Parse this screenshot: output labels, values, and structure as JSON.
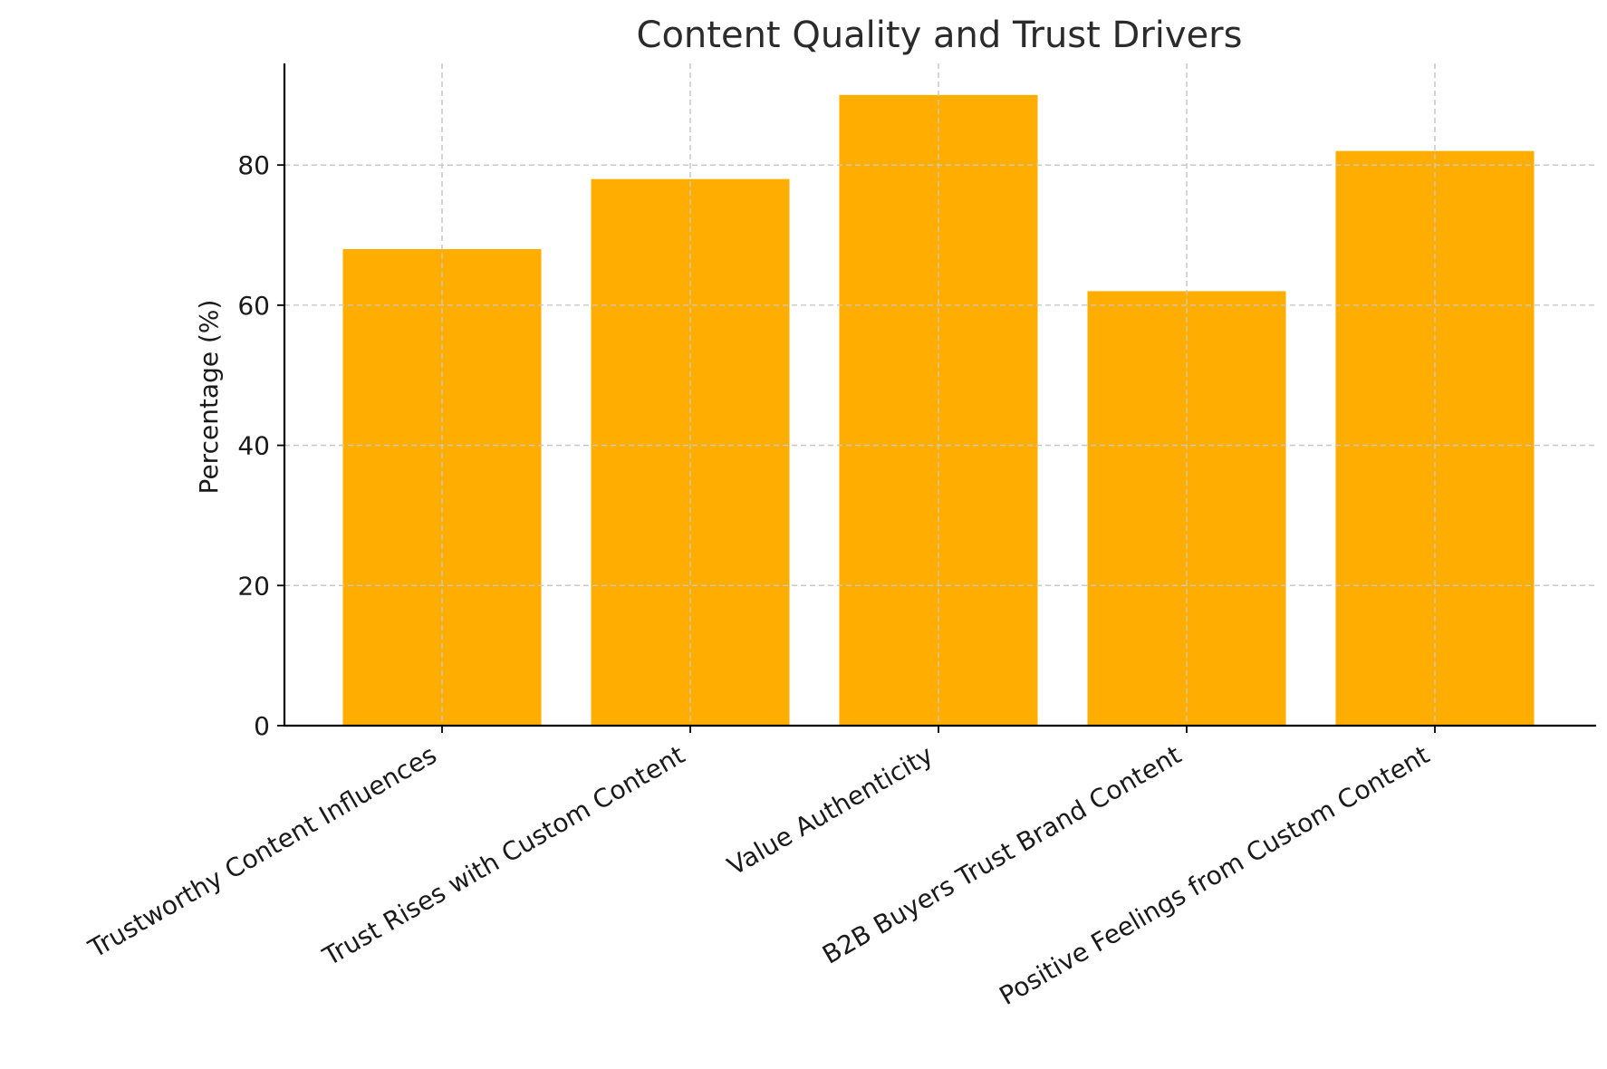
{
  "chart_data": {
    "type": "bar",
    "title": "Content Quality and Trust Drivers",
    "xlabel": "",
    "ylabel": "Percentage (%)",
    "categories": [
      "Trustworthy Content Influences",
      "Trust Rises with Custom Content",
      "Value Authenticity",
      "B2B Buyers Trust Brand Content",
      "Positive Feelings from Custom Content"
    ],
    "values": [
      68,
      78,
      90,
      62,
      82
    ],
    "ylim": [
      0,
      94.5
    ],
    "yticks": [
      0,
      20,
      40,
      60,
      80
    ],
    "grid": true,
    "bar_color": "#FFAE00",
    "legend": "none"
  }
}
